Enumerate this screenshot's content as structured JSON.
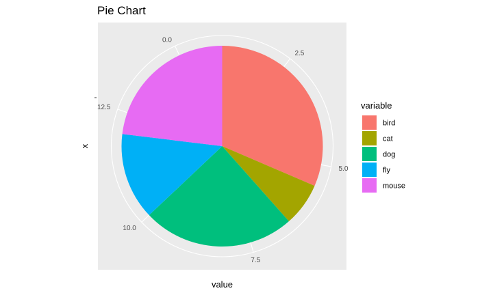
{
  "chart_data": {
    "type": "pie",
    "title": "Pie Chart",
    "xlabel": "value",
    "ylabel": "x",
    "categories": [
      "bird",
      "cat",
      "dog",
      "fly",
      "mouse"
    ],
    "values": [
      4.5,
      1.0,
      3.5,
      2.0,
      3.3
    ],
    "total": 14.3,
    "start_value_at_top": 1.0,
    "direction": "clockwise",
    "colors": [
      "#F8766D",
      "#A3A500",
      "#00BF7D",
      "#00B0F6",
      "#E76BF3"
    ],
    "theta_ticks": [
      {
        "value": 0.0,
        "label": "0.0"
      },
      {
        "value": 2.5,
        "label": "2.5"
      },
      {
        "value": 5.0,
        "label": "5.0"
      },
      {
        "value": 7.5,
        "label": "7.5"
      },
      {
        "value": 10.0,
        "label": "10.0"
      },
      {
        "value": 12.5,
        "label": "12.5"
      }
    ],
    "legend": {
      "title": "variable",
      "position": "right"
    },
    "panel_background": "#EBEBEB",
    "grid": true
  }
}
